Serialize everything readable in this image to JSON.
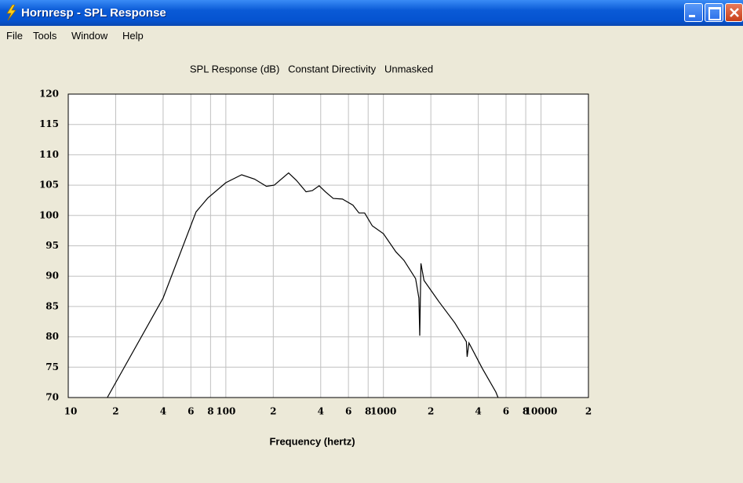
{
  "window": {
    "title": "Hornresp - SPL Response",
    "menu": [
      "File",
      "Tools",
      "Window",
      "Help"
    ]
  },
  "chart_data": {
    "type": "line",
    "title": "SPL Response (dB)   Constant Directivity   Unmasked",
    "xlabel": "Frequency (hertz)",
    "xscale": "log",
    "grid": true,
    "color": "#000000",
    "xlim": [
      10,
      20000
    ],
    "ylim": [
      70,
      120
    ],
    "xticks": [
      10,
      {
        "value": 20,
        "label": "2"
      },
      {
        "value": 40,
        "label": "4"
      },
      {
        "value": 60,
        "label": "6"
      },
      {
        "value": 80,
        "label": "8"
      },
      100,
      {
        "value": 200,
        "label": "2"
      },
      {
        "value": 400,
        "label": "4"
      },
      {
        "value": 600,
        "label": "6"
      },
      {
        "value": 800,
        "label": "8"
      },
      1000,
      {
        "value": 2000,
        "label": "2"
      },
      {
        "value": 4000,
        "label": "4"
      },
      {
        "value": 6000,
        "label": "6"
      },
      {
        "value": 8000,
        "label": "8"
      },
      10000,
      {
        "value": 20000,
        "label": "2"
      }
    ],
    "yticks": [
      70,
      75,
      80,
      85,
      90,
      95,
      100,
      105,
      110,
      115,
      120
    ],
    "x": [
      17.7,
      40,
      64.7,
      77,
      100,
      126,
      152,
      181,
      203,
      250,
      280,
      323,
      354,
      391,
      428,
      480,
      550,
      640,
      700,
      760,
      850,
      1000,
      1200,
      1350,
      1600,
      1680,
      1700,
      1730,
      1810,
      2250,
      2840,
      3360,
      3400,
      3490,
      4240,
      5170,
      5340
    ],
    "values": [
      70,
      86.4,
      100.6,
      102.9,
      105.4,
      106.7,
      106,
      104.8,
      105,
      107,
      105.8,
      103.9,
      104.1,
      104.9,
      103.9,
      102.8,
      102.7,
      101.7,
      100.4,
      100.4,
      98.3,
      97,
      94,
      92.6,
      89.6,
      86.4,
      80.2,
      92.1,
      89.3,
      85.8,
      82.3,
      79.2,
      76.7,
      79,
      74.8,
      70.9,
      70
    ]
  }
}
